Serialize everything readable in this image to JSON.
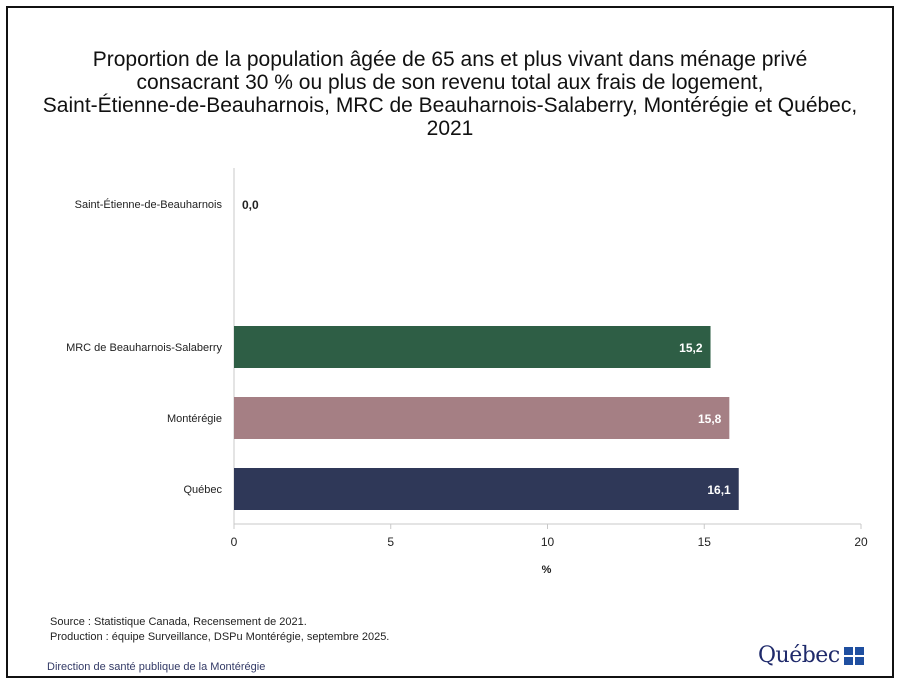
{
  "title_lines": [
    "Proportion de la population âgée de 65 ans et plus vivant dans ménage privé",
    "consacrant 30 % ou plus de son revenu total aux frais de logement,",
    "Saint-Étienne-de-Beauharnois, MRC de Beauharnois-Salaberry, Montérégie et Québec,",
    "2021"
  ],
  "chart_data": {
    "type": "bar",
    "orientation": "horizontal",
    "categories": [
      "Saint-Étienne-de-Beauharnois",
      "MRC de Beauharnois-Salaberry",
      "Montérégie",
      "Québec"
    ],
    "values": [
      0.0,
      15.2,
      15.8,
      16.1
    ],
    "value_labels": [
      "0,0",
      "15,2",
      "15,8",
      "16,1"
    ],
    "colors": [
      "#2e5e45",
      "#2e5e45",
      "#a57f84",
      "#2f3858"
    ],
    "xlabel": "%",
    "xlim": [
      0,
      20
    ],
    "xticks": [
      0,
      5,
      10,
      15,
      20
    ],
    "grid": false,
    "legend": "none"
  },
  "footer": {
    "source": "Source : Statistique Canada, Recensement de 2021.",
    "production": "Production : équipe Surveillance, DSPu Montérégie, septembre 2025.",
    "direction": "Direction de santé publique de la Montérégie"
  },
  "logo": {
    "text": "Québec",
    "icon": "quebec-flag-icon"
  }
}
